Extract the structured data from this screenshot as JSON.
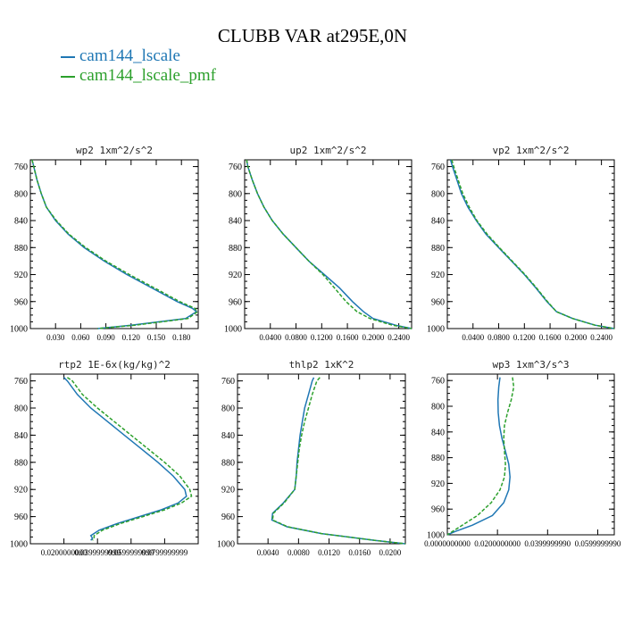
{
  "figure": {
    "title": "CLUBB VAR at295E,0N"
  },
  "legend": [
    {
      "label": "cam144_lscale",
      "color": "#1f77b4",
      "style": "solid"
    },
    {
      "label": "cam144_lscale_pmf",
      "color": "#2ca02c",
      "style": "dashed"
    }
  ],
  "chart_data": [
    {
      "type": "line",
      "title": "wp2  1xm^2/s^2",
      "xlim": [
        0,
        0.2
      ],
      "ylim": [
        1000,
        750
      ],
      "yticks": [
        "760",
        "800",
        "840",
        "880",
        "920",
        "960",
        "1000"
      ],
      "xticks": [
        "0.030",
        "0.060",
        "0.090",
        "0.120",
        "0.150",
        "0.180"
      ],
      "series": [
        {
          "name": "cam144_lscale",
          "y": [
            750,
            760,
            780,
            800,
            820,
            840,
            860,
            880,
            900,
            920,
            940,
            960,
            970,
            975,
            985,
            995,
            1000
          ],
          "x": [
            0.002,
            0.004,
            0.008,
            0.013,
            0.019,
            0.03,
            0.045,
            0.064,
            0.088,
            0.115,
            0.145,
            0.175,
            0.193,
            0.198,
            0.185,
            0.12,
            0.08
          ]
        },
        {
          "name": "cam144_lscale_pmf",
          "y": [
            750,
            760,
            780,
            800,
            820,
            840,
            860,
            880,
            900,
            920,
            940,
            960,
            970,
            975,
            985,
            995,
            1000
          ],
          "x": [
            0.002,
            0.004,
            0.008,
            0.013,
            0.019,
            0.031,
            0.046,
            0.066,
            0.09,
            0.118,
            0.148,
            0.178,
            0.196,
            0.199,
            0.188,
            0.125,
            0.08
          ]
        }
      ]
    },
    {
      "type": "line",
      "title": "up2  1xm^2/s^2",
      "xlim": [
        0,
        0.26
      ],
      "ylim": [
        1000,
        750
      ],
      "yticks": [
        "760",
        "800",
        "840",
        "880",
        "920",
        "960",
        "1000"
      ],
      "xticks": [
        "0.0400",
        "0.0800",
        "0.1200",
        "0.1600",
        "0.2000",
        "0.2400"
      ],
      "series": [
        {
          "name": "cam144_lscale",
          "y": [
            750,
            760,
            780,
            800,
            820,
            840,
            860,
            880,
            900,
            920,
            940,
            960,
            975,
            985,
            995,
            1000
          ],
          "x": [
            0.003,
            0.005,
            0.012,
            0.02,
            0.03,
            0.043,
            0.06,
            0.08,
            0.1,
            0.124,
            0.148,
            0.168,
            0.185,
            0.2,
            0.235,
            0.26
          ]
        },
        {
          "name": "cam144_lscale_pmf",
          "y": [
            750,
            760,
            780,
            800,
            820,
            840,
            860,
            880,
            900,
            920,
            940,
            960,
            975,
            985,
            995,
            1000
          ],
          "x": [
            0.003,
            0.005,
            0.012,
            0.02,
            0.03,
            0.043,
            0.06,
            0.08,
            0.1,
            0.122,
            0.14,
            0.158,
            0.175,
            0.195,
            0.23,
            0.26
          ]
        }
      ]
    },
    {
      "type": "line",
      "title": "vp2  1xm^2/s^2",
      "xlim": [
        0,
        0.26
      ],
      "ylim": [
        1000,
        750
      ],
      "yticks": [
        "760",
        "800",
        "840",
        "880",
        "920",
        "960",
        "1000"
      ],
      "xticks": [
        "0.0400",
        "0.0800",
        "0.1200",
        "0.1600",
        "0.2000",
        "0.2400"
      ],
      "series": [
        {
          "name": "cam144_lscale",
          "y": [
            750,
            760,
            780,
            800,
            820,
            840,
            860,
            880,
            900,
            920,
            940,
            960,
            975,
            985,
            995,
            1000
          ],
          "x": [
            0.005,
            0.008,
            0.015,
            0.022,
            0.032,
            0.045,
            0.06,
            0.08,
            0.1,
            0.12,
            0.138,
            0.155,
            0.17,
            0.195,
            0.23,
            0.26
          ]
        },
        {
          "name": "cam144_lscale_pmf",
          "y": [
            750,
            760,
            780,
            800,
            820,
            840,
            860,
            880,
            900,
            920,
            940,
            960,
            975,
            985,
            995,
            1000
          ],
          "x": [
            0.007,
            0.01,
            0.017,
            0.024,
            0.034,
            0.046,
            0.062,
            0.081,
            0.101,
            0.121,
            0.139,
            0.156,
            0.17,
            0.195,
            0.23,
            0.26
          ]
        }
      ]
    },
    {
      "type": "line",
      "title": "rtp2  1E-6x(kg/kg)^2",
      "xlim": [
        0,
        0.1
      ],
      "ylim": [
        1000,
        750
      ],
      "yticks": [
        "760",
        "800",
        "840",
        "880",
        "920",
        "960",
        "1000"
      ],
      "xticks": [
        "0.0200000000",
        "0.0399999999",
        "0.0599999999",
        "0.0799999999"
      ],
      "series": [
        {
          "name": "cam144_lscale",
          "y": [
            755,
            760,
            780,
            800,
            820,
            840,
            860,
            880,
            900,
            920,
            930,
            940,
            950,
            960,
            970,
            980,
            988,
            992,
            995
          ],
          "x": [
            0.02,
            0.022,
            0.028,
            0.036,
            0.046,
            0.056,
            0.066,
            0.076,
            0.085,
            0.092,
            0.093,
            0.088,
            0.078,
            0.065,
            0.052,
            0.041,
            0.036,
            0.037,
            0.036
          ]
        },
        {
          "name": "cam144_lscale_pmf",
          "y": [
            755,
            760,
            780,
            800,
            820,
            840,
            860,
            880,
            900,
            920,
            930,
            940,
            950,
            960,
            970,
            980,
            988,
            992,
            995
          ],
          "x": [
            0.022,
            0.025,
            0.031,
            0.04,
            0.05,
            0.06,
            0.07,
            0.08,
            0.089,
            0.095,
            0.096,
            0.09,
            0.08,
            0.067,
            0.054,
            0.043,
            0.038,
            0.038,
            0.037
          ]
        }
      ]
    },
    {
      "type": "line",
      "title": "thlp2  1xK^2",
      "xlim": [
        0,
        0.022
      ],
      "ylim": [
        1000,
        750
      ],
      "yticks": [
        "760",
        "800",
        "840",
        "880",
        "920",
        "960",
        "1000"
      ],
      "xticks": [
        "0.0040",
        "0.0080",
        "0.0120",
        "0.0160",
        "0.0200"
      ],
      "series": [
        {
          "name": "cam144_lscale",
          "y": [
            755,
            760,
            780,
            800,
            820,
            840,
            860,
            880,
            900,
            920,
            940,
            955,
            965,
            975,
            985,
            995,
            1000
          ],
          "x": [
            0.01,
            0.0098,
            0.0093,
            0.0088,
            0.0085,
            0.0082,
            0.008,
            0.0078,
            0.0077,
            0.0075,
            0.006,
            0.0046,
            0.0045,
            0.0065,
            0.011,
            0.018,
            0.022
          ]
        },
        {
          "name": "cam144_lscale_pmf",
          "y": [
            755,
            760,
            780,
            800,
            820,
            840,
            860,
            880,
            900,
            920,
            940,
            955,
            965,
            975,
            985,
            995,
            1000
          ],
          "x": [
            0.0108,
            0.0104,
            0.0098,
            0.0093,
            0.0088,
            0.0084,
            0.0081,
            0.0079,
            0.0077,
            0.0075,
            0.0061,
            0.0047,
            0.0046,
            0.0066,
            0.011,
            0.018,
            0.022
          ]
        }
      ]
    },
    {
      "type": "line",
      "title": "wp3  1xm^3/s^3",
      "xlim": [
        0,
        0.0666
      ],
      "ylim": [
        1000,
        750
      ],
      "yticks": [
        "760",
        "800",
        "840",
        "880",
        "920",
        "960",
        "1000"
      ],
      "xticks": [
        "0.0000000000",
        "0.0200000000",
        "0.0399999990",
        "0.0599999990"
      ],
      "series": [
        {
          "name": "cam144_lscale",
          "y": [
            755,
            770,
            790,
            810,
            830,
            850,
            870,
            890,
            910,
            930,
            950,
            970,
            985,
            995,
            1000
          ],
          "x": [
            0.021,
            0.0205,
            0.0202,
            0.0203,
            0.0208,
            0.0218,
            0.0232,
            0.0245,
            0.025,
            0.0245,
            0.0225,
            0.018,
            0.01,
            0.003,
            0.0
          ]
        },
        {
          "name": "cam144_lscale_pmf",
          "y": [
            755,
            770,
            790,
            810,
            830,
            850,
            870,
            890,
            910,
            930,
            950,
            970,
            985,
            995,
            1000
          ],
          "x": [
            0.026,
            0.0265,
            0.0255,
            0.024,
            0.0228,
            0.0225,
            0.0228,
            0.0232,
            0.0228,
            0.021,
            0.0175,
            0.012,
            0.006,
            0.002,
            0.0
          ]
        }
      ]
    }
  ]
}
